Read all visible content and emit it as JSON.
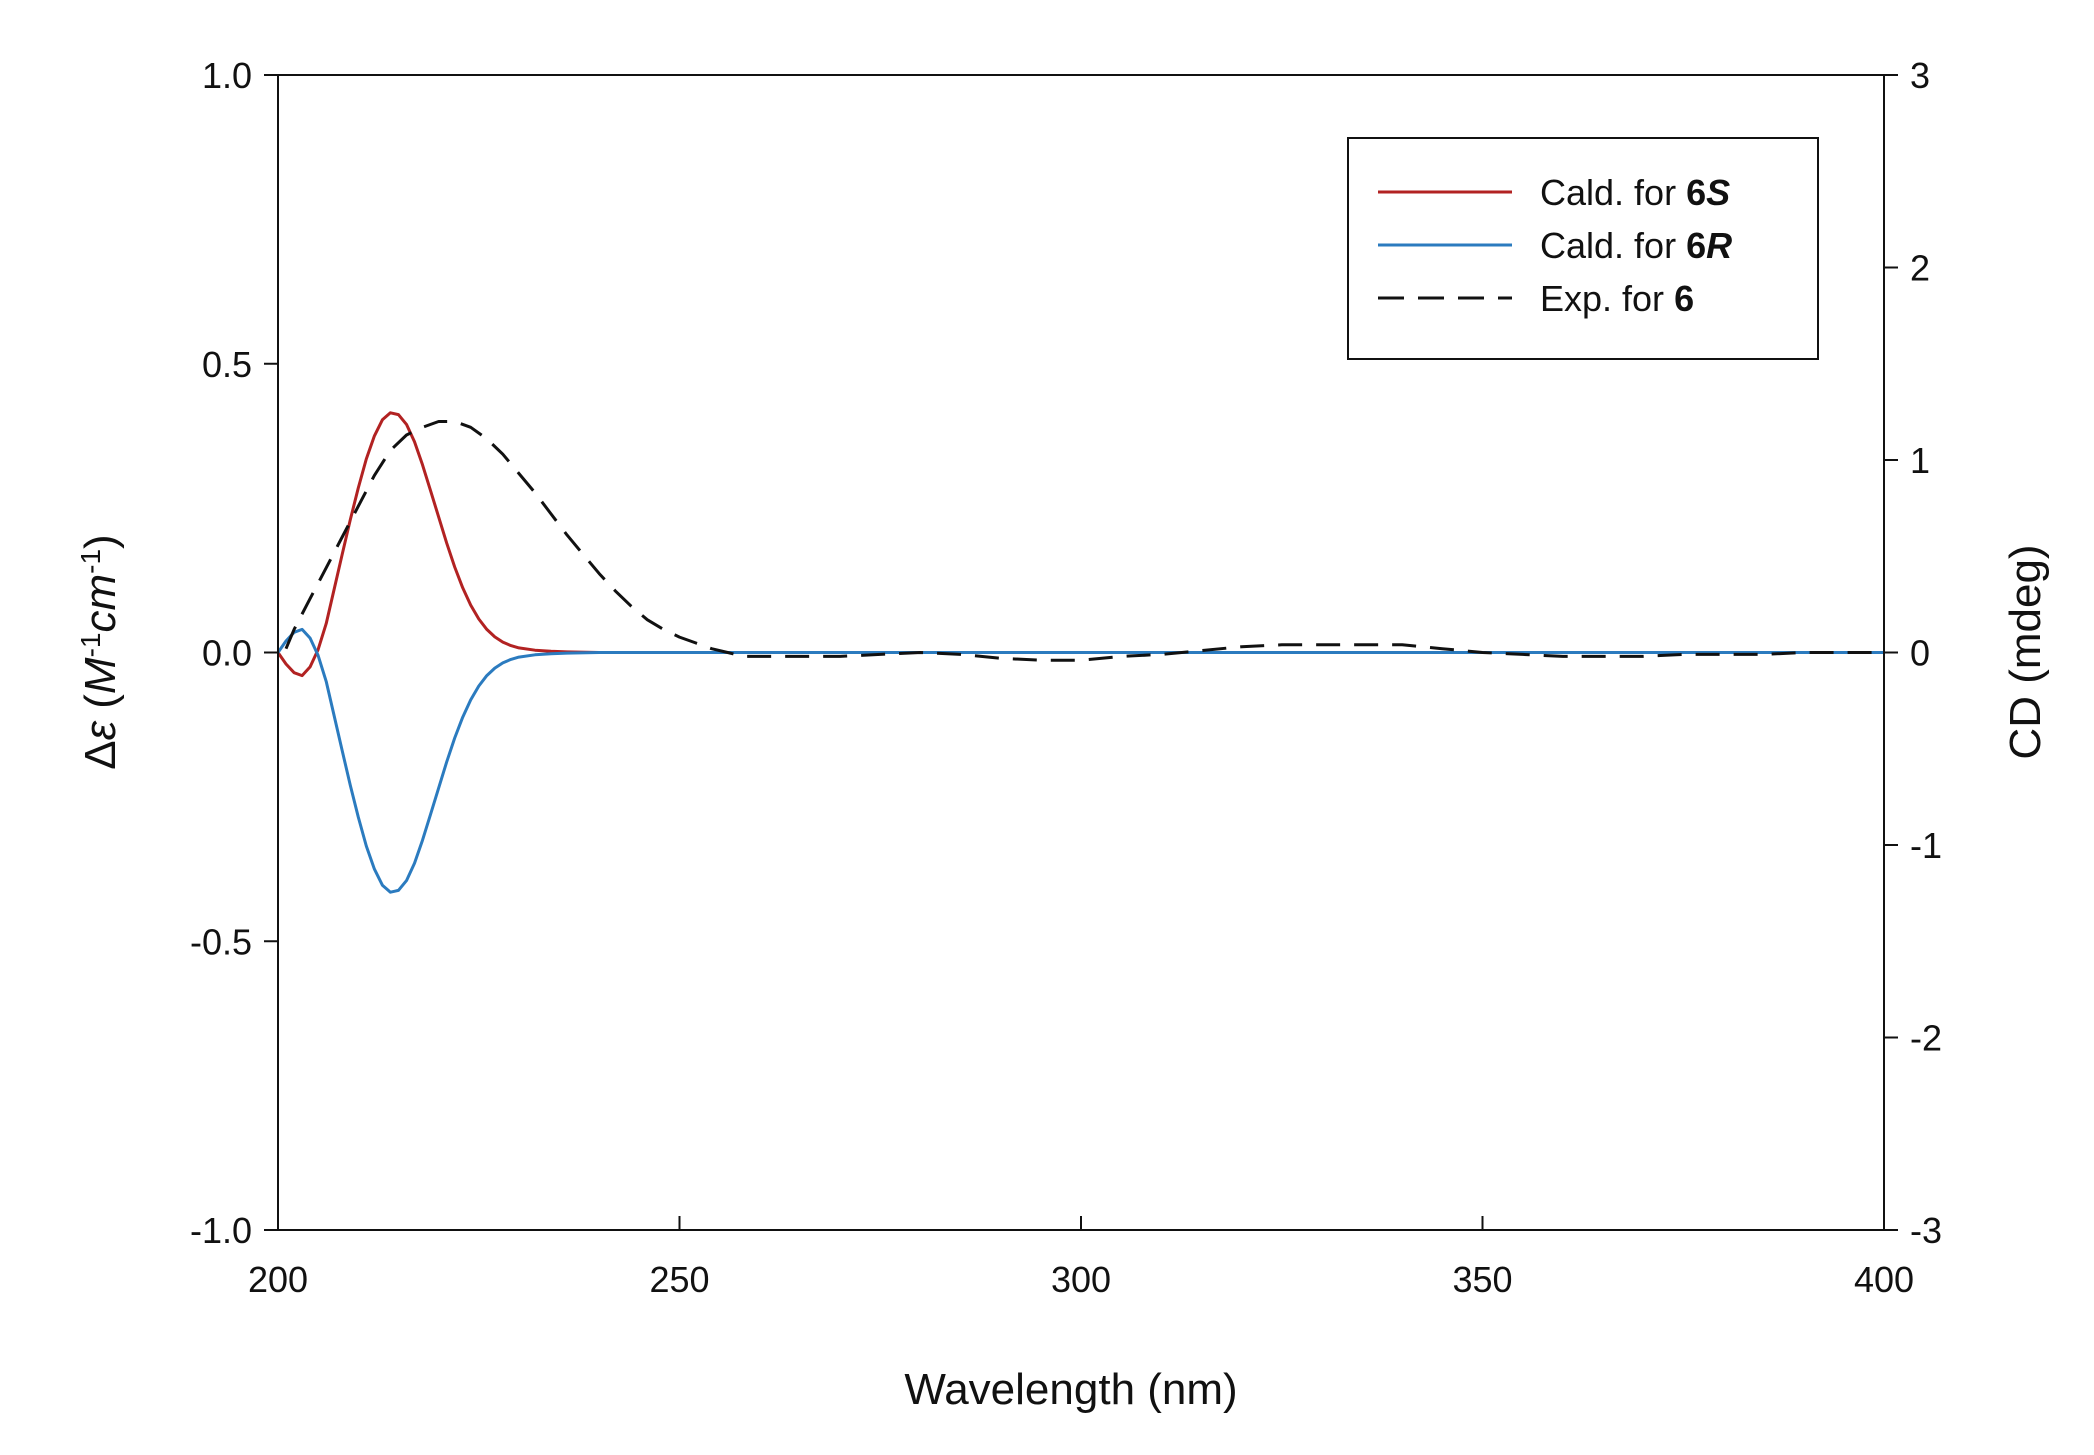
{
  "chart_data": {
    "type": "line",
    "xlabel": "Wavelength (nm)",
    "ylabel_left": {
      "prefix": "Δ",
      "symbol": "ε",
      "open": " (",
      "m": "M",
      "m_exp": "-1",
      "cm": "cm",
      "cm_exp": "-1",
      "close": ")"
    },
    "ylabel_right": "CD (mdeg)",
    "xlim": [
      200,
      400
    ],
    "ylim_left": [
      -1.0,
      1.0
    ],
    "ylim_right": [
      -3,
      3
    ],
    "xticks": [
      "200",
      "250",
      "300",
      "350",
      "400"
    ],
    "yticks_left": [
      "1.0",
      "0.5",
      "0.0",
      "-0.5",
      "-1.0"
    ],
    "yticks_right": [
      "3",
      "2",
      "1",
      "0",
      "-1",
      "-2",
      "-3"
    ],
    "grid": false,
    "legend_position": "top-right",
    "colors": {
      "six_s": "#b22222",
      "six_r": "#2b7bbf",
      "exp": "#111111"
    },
    "legend": [
      {
        "prefix": "Cald.  for ",
        "bold": "6",
        "bolditalic": "S",
        "style": "solid",
        "color": "#b22222"
      },
      {
        "prefix": "Cald.  for ",
        "bold": "6",
        "bolditalic": "R",
        "style": "solid",
        "color": "#2b7bbf"
      },
      {
        "prefix": "Exp.  for ",
        "bold": "6",
        "bolditalic": "",
        "style": "dashed",
        "color": "#111111"
      }
    ],
    "series": [
      {
        "axis": "left",
        "color": "#b22222",
        "style": "solid",
        "x": [
          200,
          201,
          202,
          203,
          204,
          205,
          206,
          207,
          208,
          209,
          210,
          211,
          212,
          213,
          214,
          215,
          216,
          217,
          218,
          219,
          220,
          221,
          222,
          223,
          224,
          225,
          226,
          227,
          228,
          229,
          230,
          232,
          234,
          236,
          240,
          260,
          300,
          350,
          400
        ],
        "y": [
          0.0,
          -0.02,
          -0.035,
          -0.04,
          -0.025,
          0.005,
          0.05,
          0.11,
          0.17,
          0.23,
          0.285,
          0.335,
          0.375,
          0.403,
          0.415,
          0.412,
          0.395,
          0.365,
          0.325,
          0.28,
          0.235,
          0.19,
          0.148,
          0.112,
          0.082,
          0.058,
          0.04,
          0.027,
          0.018,
          0.012,
          0.008,
          0.004,
          0.002,
          0.001,
          0.0,
          0.0,
          0.0,
          0.0,
          0.0
        ]
      },
      {
        "axis": "left",
        "color": "#2b7bbf",
        "style": "solid",
        "x": [
          200,
          201,
          202,
          203,
          204,
          205,
          206,
          207,
          208,
          209,
          210,
          211,
          212,
          213,
          214,
          215,
          216,
          217,
          218,
          219,
          220,
          221,
          222,
          223,
          224,
          225,
          226,
          227,
          228,
          229,
          230,
          232,
          234,
          236,
          240,
          260,
          300,
          350,
          400
        ],
        "y": [
          0.0,
          0.02,
          0.035,
          0.04,
          0.025,
          -0.005,
          -0.05,
          -0.11,
          -0.17,
          -0.23,
          -0.285,
          -0.335,
          -0.375,
          -0.403,
          -0.415,
          -0.412,
          -0.395,
          -0.365,
          -0.325,
          -0.28,
          -0.235,
          -0.19,
          -0.148,
          -0.112,
          -0.082,
          -0.058,
          -0.04,
          -0.027,
          -0.018,
          -0.012,
          -0.008,
          -0.004,
          -0.002,
          -0.001,
          0.0,
          0.0,
          0.0,
          0.0,
          0.0
        ]
      },
      {
        "axis": "right",
        "color": "#111111",
        "style": "dashed",
        "x": [
          201,
          202,
          204,
          206,
          208,
          210,
          212,
          214,
          216,
          218,
          220,
          222,
          224,
          226,
          228,
          230,
          232,
          234,
          236,
          238,
          240,
          242,
          244,
          246,
          248,
          250,
          252,
          254,
          256,
          258,
          260,
          265,
          270,
          275,
          280,
          285,
          290,
          295,
          300,
          305,
          310,
          315,
          320,
          325,
          330,
          335,
          340,
          345,
          350,
          355,
          360,
          365,
          370,
          375,
          380,
          385,
          390,
          395,
          400
        ],
        "y": [
          0.02,
          0.12,
          0.28,
          0.44,
          0.6,
          0.76,
          0.92,
          1.05,
          1.13,
          1.17,
          1.2,
          1.2,
          1.17,
          1.11,
          1.03,
          0.93,
          0.83,
          0.72,
          0.61,
          0.51,
          0.41,
          0.32,
          0.24,
          0.17,
          0.12,
          0.08,
          0.05,
          0.02,
          0.0,
          -0.02,
          -0.02,
          -0.02,
          -0.02,
          -0.01,
          0.0,
          -0.01,
          -0.03,
          -0.04,
          -0.04,
          -0.02,
          -0.01,
          0.01,
          0.03,
          0.04,
          0.04,
          0.04,
          0.04,
          0.02,
          0.0,
          -0.01,
          -0.02,
          -0.02,
          -0.02,
          -0.01,
          -0.01,
          -0.01,
          0.0,
          0.0,
          0.0
        ]
      }
    ]
  }
}
